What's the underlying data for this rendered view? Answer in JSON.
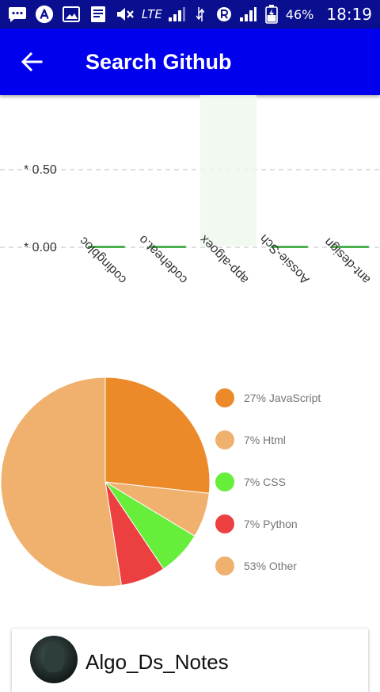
{
  "status_bar": {
    "lte": "LTE",
    "battery": "46%",
    "time": "18:19"
  },
  "app_bar": {
    "title": "Search Github",
    "back_icon": "arrow-back-icon"
  },
  "chart_data": [
    {
      "type": "bar",
      "categories": [
        "codingbloc",
        "codeheat.o",
        "app-algoex",
        "Aossie-Sch",
        "ant-design"
      ],
      "values": [
        0,
        0,
        0,
        0,
        0
      ],
      "highlighted_category": "app-algoex",
      "ytick_labels": [
        "* 0.50",
        "* 0.00"
      ],
      "ytick_values": [
        0.5,
        0
      ],
      "ylim": [
        0,
        1
      ],
      "grid": "dashed horizontal",
      "bar_color": "#4caf50"
    },
    {
      "type": "pie",
      "labels": [
        "JavaScript",
        "Html",
        "CSS",
        "Python",
        "Other"
      ],
      "values": [
        27,
        7,
        7,
        7,
        53
      ],
      "legend_labels": [
        "27% JavaScript",
        "7% Html",
        "7% CSS",
        "7% Python",
        "53% Other"
      ],
      "colors": [
        "#ec8a2a",
        "#f0b06e",
        "#66ee3a",
        "#ec4040",
        "#f0b06e"
      ],
      "legend_position": "right"
    }
  ],
  "repo_card": {
    "name": "Algo_Ds_Notes"
  }
}
